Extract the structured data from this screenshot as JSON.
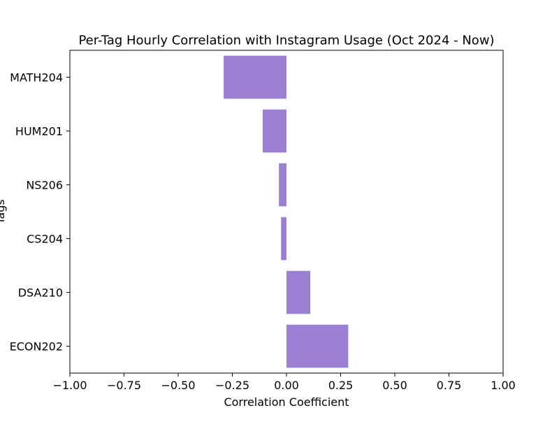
{
  "chart_data": {
    "type": "bar",
    "orientation": "horizontal",
    "title": "Per-Tag Hourly Correlation with Instagram Usage (Oct 2024 - Now)",
    "xlabel": "Correlation Coefficient",
    "ylabel": "Tags",
    "xlim": [
      -1.0,
      1.0
    ],
    "xticks": [
      -1.0,
      -0.75,
      -0.5,
      -0.25,
      0.0,
      0.25,
      0.5,
      0.75,
      1.0
    ],
    "xtick_labels": [
      "−1.00",
      "−0.75",
      "−0.50",
      "−0.25",
      "0.00",
      "0.25",
      "0.50",
      "0.75",
      "1.00"
    ],
    "categories": [
      "MATH204",
      "HUM201",
      "NS206",
      "CS204",
      "DSA210",
      "ECON202"
    ],
    "values": [
      -0.29,
      -0.11,
      -0.035,
      -0.025,
      0.11,
      0.285
    ],
    "bar_color": "#9b7fd0",
    "grid": false,
    "legend": "none"
  }
}
